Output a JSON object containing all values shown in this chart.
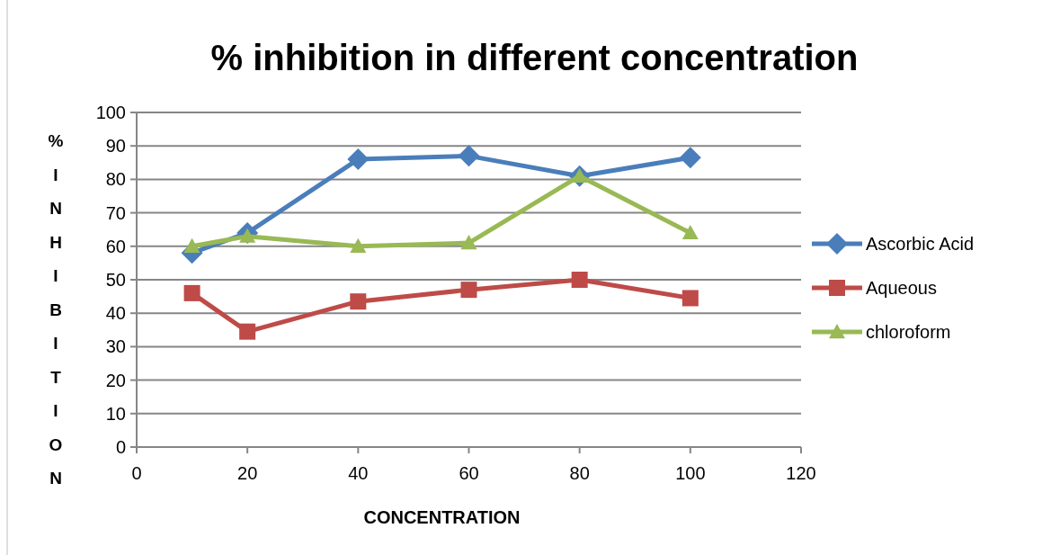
{
  "chart_data": {
    "type": "line",
    "title": "% inhibition in different concentration",
    "xlabel": "CONCENTRATION",
    "ylabel": "% INHIBITION",
    "x": [
      10,
      20,
      40,
      60,
      80,
      100
    ],
    "xlim": [
      0,
      120
    ],
    "xticks": [
      0,
      20,
      40,
      60,
      80,
      100,
      120
    ],
    "ylim": [
      0,
      100
    ],
    "yticks": [
      0,
      10,
      20,
      30,
      40,
      50,
      60,
      70,
      80,
      90,
      100
    ],
    "grid": "y",
    "legend": "right",
    "series": [
      {
        "name": "Ascorbic Acid",
        "color": "#4a7ebb",
        "marker": "diamond",
        "values": [
          58,
          64,
          86,
          87,
          81,
          86.5
        ]
      },
      {
        "name": "Aqueous",
        "color": "#be4b48",
        "marker": "square",
        "values": [
          46,
          34.5,
          43.5,
          47,
          50,
          44.5
        ]
      },
      {
        "name": "chloroform",
        "color": "#98b954",
        "marker": "triangle",
        "values": [
          60,
          63,
          60,
          61,
          81,
          64
        ]
      }
    ]
  }
}
